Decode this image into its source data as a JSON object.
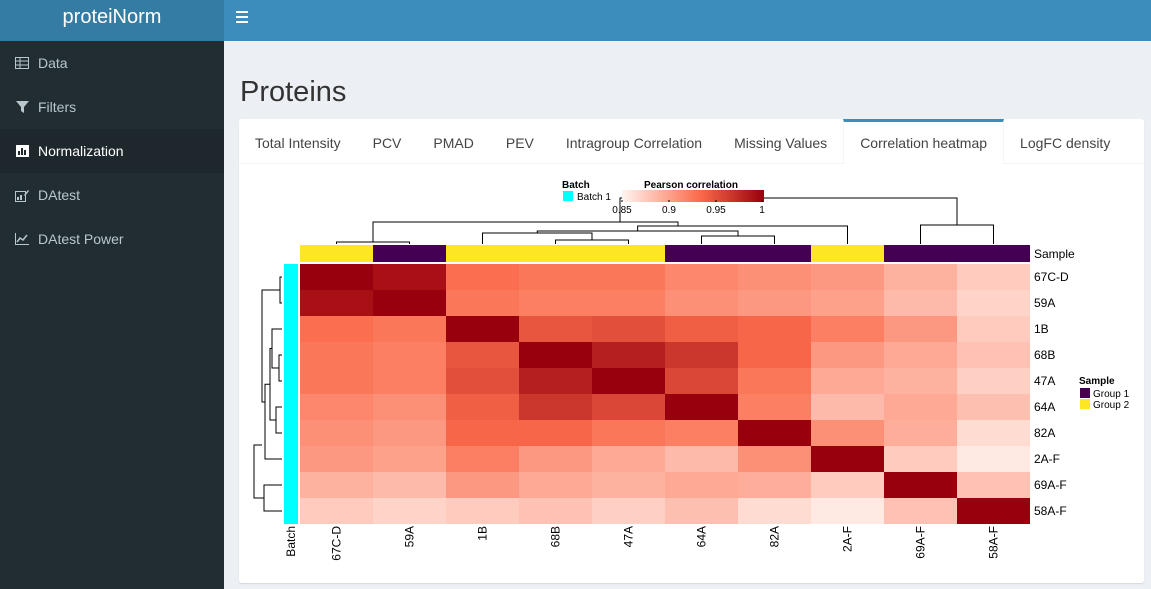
{
  "app": {
    "title": "proteiNorm"
  },
  "sidebar": {
    "items": [
      {
        "label": "Data",
        "icon": "table-icon"
      },
      {
        "label": "Filters",
        "icon": "filter-icon"
      },
      {
        "label": "Normalization",
        "icon": "bar-chart-icon",
        "active": true
      },
      {
        "label": "DAtest",
        "icon": "edit-chart-icon"
      },
      {
        "label": "DAtest Power",
        "icon": "line-chart-icon"
      }
    ]
  },
  "page": {
    "title": "Proteins"
  },
  "tabs": [
    {
      "label": "Total Intensity"
    },
    {
      "label": "PCV"
    },
    {
      "label": "PMAD"
    },
    {
      "label": "PEV"
    },
    {
      "label": "Intragroup Correlation"
    },
    {
      "label": "Missing Values"
    },
    {
      "label": "Correlation heatmap",
      "active": true
    },
    {
      "label": "LogFC density"
    }
  ],
  "chart_data": {
    "type": "heatmap",
    "samples": [
      "67C-D",
      "59A",
      "1B",
      "68B",
      "47A",
      "64A",
      "82A",
      "2A-F",
      "69A-F",
      "58A-F"
    ],
    "sample_groups": [
      "Group 2",
      "Group 1",
      "Group 2",
      "Group 2",
      "Group 2",
      "Group 1",
      "Group 1",
      "Group 2",
      "Group 1",
      "Group 1"
    ],
    "batch": [
      "Batch 1",
      "Batch 1",
      "Batch 1",
      "Batch 1",
      "Batch 1",
      "Batch 1",
      "Batch 1",
      "Batch 1",
      "Batch 1",
      "Batch 1"
    ],
    "values": [
      [
        1.0,
        0.99,
        0.93,
        0.925,
        0.925,
        0.915,
        0.91,
        0.905,
        0.89,
        0.875
      ],
      [
        0.99,
        1.0,
        0.925,
        0.92,
        0.92,
        0.91,
        0.905,
        0.9,
        0.885,
        0.87
      ],
      [
        0.93,
        0.925,
        1.0,
        0.945,
        0.95,
        0.94,
        0.935,
        0.92,
        0.905,
        0.875
      ],
      [
        0.925,
        0.92,
        0.945,
        1.0,
        0.98,
        0.965,
        0.935,
        0.905,
        0.895,
        0.88
      ],
      [
        0.925,
        0.92,
        0.95,
        0.98,
        1.0,
        0.955,
        0.925,
        0.895,
        0.89,
        0.872
      ],
      [
        0.915,
        0.91,
        0.94,
        0.965,
        0.955,
        1.0,
        0.92,
        0.885,
        0.895,
        0.882
      ],
      [
        0.91,
        0.905,
        0.935,
        0.935,
        0.925,
        0.92,
        1.0,
        0.91,
        0.893,
        0.865
      ],
      [
        0.905,
        0.9,
        0.92,
        0.905,
        0.895,
        0.885,
        0.91,
        1.0,
        0.875,
        0.857
      ],
      [
        0.89,
        0.885,
        0.905,
        0.895,
        0.89,
        0.895,
        0.893,
        0.875,
        1.0,
        0.88
      ],
      [
        0.875,
        0.87,
        0.875,
        0.88,
        0.872,
        0.882,
        0.865,
        0.857,
        0.88,
        1.0
      ]
    ],
    "color_range": [
      0.85,
      1
    ],
    "legend": {
      "batch_title": "Batch",
      "batch_label": "Batch 1",
      "corr_title": "Pearson correlation",
      "corr_ticks": [
        "0.85",
        "0.9",
        "0.95",
        "1"
      ],
      "sample_title": "Sample",
      "group1_label": "Group 1",
      "group2_label": "Group 2"
    },
    "annotation_labels": {
      "sample": "Sample",
      "batch": "Batch"
    },
    "colors": {
      "batch": "#00ffff",
      "group1": "#440154",
      "group2": "#fde725",
      "low": "#fff5f0",
      "mid": "#fb6a4a",
      "high": "#99000d"
    }
  }
}
